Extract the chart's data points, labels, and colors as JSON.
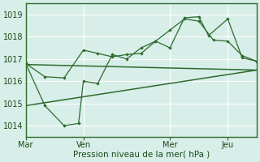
{
  "xlabel": "Pression niveau de la mer( hPa )",
  "bg_color": "#d8eee8",
  "grid_color": "#ffffff",
  "line_color": "#2d6b2d",
  "xlim": [
    0,
    96
  ],
  "ylim": [
    1013.5,
    1019.5
  ],
  "yticks": [
    1014,
    1015,
    1016,
    1017,
    1018,
    1019
  ],
  "xtick_labels": [
    "Mar",
    "Ven",
    "Mer",
    "Jeu"
  ],
  "xtick_pos": [
    0,
    24,
    60,
    84
  ],
  "vlines": [
    0,
    24,
    60,
    84
  ],
  "series1_x": [
    0,
    8,
    16,
    22,
    24,
    30,
    36,
    42,
    48,
    54,
    60,
    66,
    72,
    76,
    84,
    90,
    96
  ],
  "series1_y": [
    1016.8,
    1014.9,
    1014.0,
    1014.1,
    1016.0,
    1015.9,
    1017.2,
    1017.0,
    1017.5,
    1017.8,
    1017.5,
    1018.85,
    1018.9,
    1018.05,
    1018.8,
    1017.05,
    1016.9
  ],
  "series2_x": [
    0,
    8,
    16,
    24,
    30,
    36,
    42,
    48,
    54,
    60,
    66,
    72,
    78,
    84,
    90,
    96
  ],
  "series2_y": [
    1016.8,
    1016.2,
    1016.15,
    1017.4,
    1017.25,
    1017.1,
    1017.2,
    1017.25,
    1017.8,
    1018.3,
    1018.8,
    1018.7,
    1017.85,
    1017.8,
    1017.15,
    1016.9
  ],
  "series3_x": [
    0,
    96
  ],
  "series3_y": [
    1016.75,
    1016.5
  ],
  "series4_x": [
    0,
    96
  ],
  "series4_y": [
    1014.9,
    1016.5
  ]
}
